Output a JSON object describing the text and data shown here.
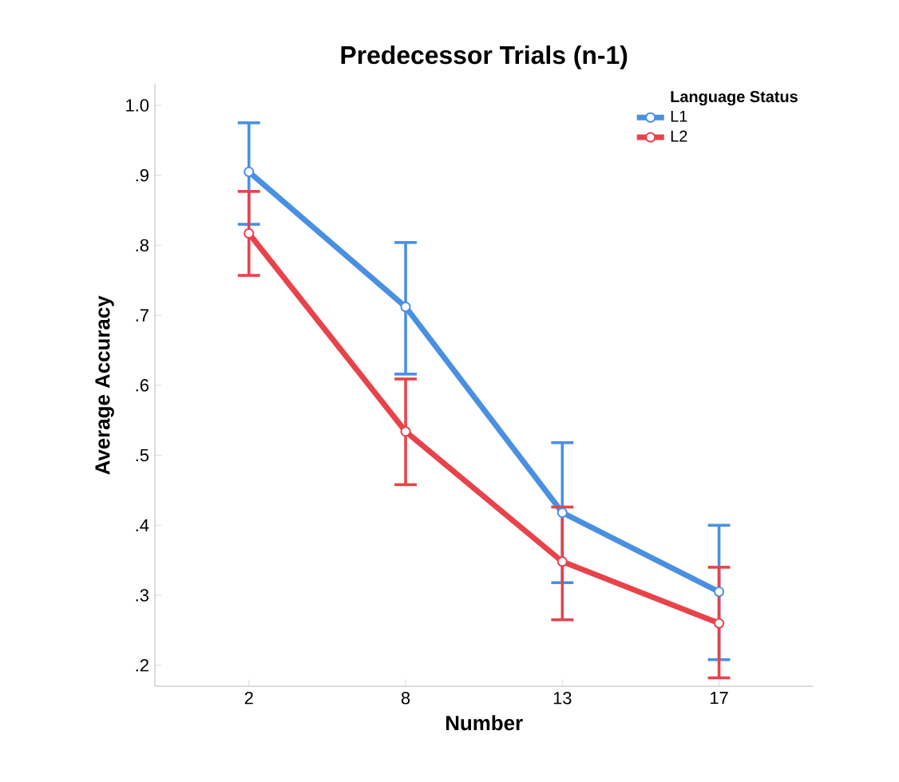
{
  "chart_data": {
    "type": "line",
    "title": "Predecessor Trials (n-1)",
    "xlabel": "Number",
    "ylabel": "Average Accuracy",
    "legend_title": "Language Status",
    "categories": [
      "2",
      "8",
      "13",
      "17"
    ],
    "series": [
      {
        "name": "L1",
        "color": "#4a90e2",
        "values": [
          0.905,
          0.712,
          0.418,
          0.305
        ],
        "errors": [
          [
            0.83,
            0.975
          ],
          [
            0.616,
            0.804
          ],
          [
            0.318,
            0.518
          ],
          [
            0.208,
            0.4
          ]
        ]
      },
      {
        "name": "L2",
        "color": "#e8434b",
        "values": [
          0.817,
          0.534,
          0.348,
          0.26
        ],
        "errors": [
          [
            0.757,
            0.877
          ],
          [
            0.458,
            0.609
          ],
          [
            0.265,
            0.426
          ],
          [
            0.182,
            0.34
          ]
        ]
      }
    ],
    "ylim": [
      0.17,
      1.03
    ],
    "yticks": [
      {
        "value": 0.2,
        "label": ".2"
      },
      {
        "value": 0.3,
        "label": ".3"
      },
      {
        "value": 0.4,
        "label": ".4"
      },
      {
        "value": 0.5,
        "label": ".5"
      },
      {
        "value": 0.6,
        "label": ".6"
      },
      {
        "value": 0.7,
        "label": ".7"
      },
      {
        "value": 0.8,
        "label": ".8"
      },
      {
        "value": 0.9,
        "label": ".9"
      },
      {
        "value": 1.0,
        "label": "1.0"
      }
    ],
    "legend": "top right",
    "marker": "circle",
    "line_style": "solid",
    "grid": false
  }
}
